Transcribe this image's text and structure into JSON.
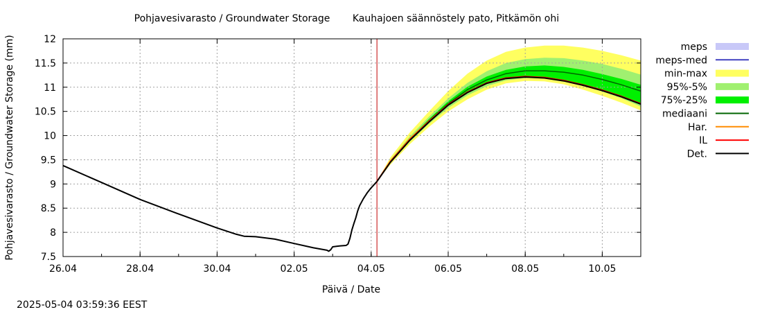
{
  "title_left": "Pohjavesivarasto / Groundwater Storage",
  "title_right": "Kauhajoen säännöstely pato, Pitkämön ohi",
  "timestamp": "2025-05-04 03:59:36 EEST",
  "chart_data": {
    "type": "area",
    "xlabel": "Päivä / Date",
    "ylabel": "Pohjavesivarasto / Groundwater Storage (mm)",
    "xlim": [
      0,
      15
    ],
    "ylim": [
      7.5,
      12
    ],
    "grid": true,
    "legend_position": "right",
    "x_ticks": [
      {
        "x": 0,
        "label": "26.04"
      },
      {
        "x": 2,
        "label": "28.04"
      },
      {
        "x": 4,
        "label": "30.04"
      },
      {
        "x": 6,
        "label": "02.05"
      },
      {
        "x": 8,
        "label": "04.05"
      },
      {
        "x": 10,
        "label": "06.05"
      },
      {
        "x": 12,
        "label": "08.05"
      },
      {
        "x": 14,
        "label": "10.05"
      }
    ],
    "y_ticks": [
      {
        "y": 12,
        "label": "12"
      },
      {
        "y": 11.5,
        "label": "11.5"
      },
      {
        "y": 11,
        "label": "11"
      },
      {
        "y": 10.5,
        "label": "10.5"
      },
      {
        "y": 10,
        "label": "10"
      },
      {
        "y": 9.5,
        "label": "9.5"
      },
      {
        "y": 9,
        "label": "9"
      },
      {
        "y": 8.5,
        "label": "8.5"
      },
      {
        "y": 8,
        "label": "8"
      },
      {
        "y": 7.5,
        "label": "7.5"
      }
    ],
    "forecast_start_x": 8.15,
    "colors": {
      "meps": "#c8c8f8",
      "meps_med": "#4040c0",
      "min_max": "#ffff60",
      "p95_5": "#a0f070",
      "p75_25": "#00f000",
      "mediaani": "#006400",
      "har": "#ff8c00",
      "il": "#ff0000",
      "det": "#000000",
      "vline": "#c00000"
    },
    "legend": [
      {
        "key": "meps",
        "label": "meps",
        "kind": "band"
      },
      {
        "key": "meps_med",
        "label": "meps-med",
        "kind": "line"
      },
      {
        "key": "min_max",
        "label": "min-max",
        "kind": "band"
      },
      {
        "key": "p95_5",
        "label": "95%-5%",
        "kind": "band"
      },
      {
        "key": "p75_25",
        "label": "75%-25%",
        "kind": "band"
      },
      {
        "key": "mediaani",
        "label": "mediaani",
        "kind": "line"
      },
      {
        "key": "har",
        "label": "Har.",
        "kind": "line"
      },
      {
        "key": "il",
        "label": "IL",
        "kind": "line"
      },
      {
        "key": "det",
        "label": "Det.",
        "kind": "line"
      }
    ],
    "observed": {
      "x": [
        0,
        1,
        2,
        3,
        4,
        4.5,
        4.7,
        5,
        5.5,
        6,
        6.5,
        6.85,
        6.9,
        6.95,
        7.0,
        7.1,
        7.2,
        7.35,
        7.4,
        7.45,
        7.5,
        7.55,
        7.6,
        7.65,
        7.7,
        7.8,
        7.9,
        8.0,
        8.15
      ],
      "y": [
        9.38,
        9.03,
        8.68,
        8.38,
        8.09,
        7.96,
        7.92,
        7.91,
        7.86,
        7.77,
        7.68,
        7.63,
        7.61,
        7.64,
        7.7,
        7.71,
        7.72,
        7.73,
        7.76,
        7.88,
        8.05,
        8.18,
        8.3,
        8.44,
        8.55,
        8.7,
        8.82,
        8.92,
        9.05
      ]
    },
    "forecast_x": [
      8.15,
      8.5,
      9.0,
      9.5,
      10.0,
      10.5,
      11.0,
      11.5,
      12.0,
      12.5,
      13.0,
      13.5,
      14.0,
      14.5,
      15.0
    ],
    "bands": {
      "min_max": {
        "low": [
          9.05,
          9.4,
          9.82,
          10.18,
          10.5,
          10.75,
          10.95,
          11.08,
          11.13,
          11.12,
          11.06,
          10.95,
          10.82,
          10.68,
          10.52
        ],
        "high": [
          9.05,
          9.55,
          10.06,
          10.5,
          10.92,
          11.28,
          11.55,
          11.73,
          11.82,
          11.86,
          11.86,
          11.82,
          11.75,
          11.66,
          11.55
        ]
      },
      "p95_5": {
        "low": [
          9.05,
          9.43,
          9.87,
          10.24,
          10.57,
          10.83,
          11.02,
          11.14,
          11.19,
          11.18,
          11.13,
          11.03,
          10.91,
          10.77,
          10.6
        ],
        "high": [
          9.05,
          9.5,
          9.98,
          10.39,
          10.77,
          11.09,
          11.33,
          11.5,
          11.58,
          11.61,
          11.6,
          11.55,
          11.48,
          11.38,
          11.26
        ]
      },
      "p75_25": {
        "low": [
          9.05,
          9.45,
          9.9,
          10.28,
          10.62,
          10.88,
          11.07,
          11.18,
          11.22,
          11.2,
          11.14,
          11.05,
          10.94,
          10.81,
          10.67
        ],
        "high": [
          9.05,
          9.48,
          9.94,
          10.34,
          10.71,
          11.01,
          11.22,
          11.36,
          11.43,
          11.45,
          11.42,
          11.36,
          11.27,
          11.17,
          11.05
        ]
      }
    },
    "lines": {
      "mediaani": [
        9.05,
        9.46,
        9.92,
        10.31,
        10.66,
        10.95,
        11.15,
        11.28,
        11.34,
        11.34,
        11.31,
        11.25,
        11.16,
        11.05,
        10.92
      ],
      "har": [
        9.05,
        9.47,
        9.93,
        10.3,
        10.64,
        10.9,
        11.08,
        11.18,
        11.22,
        11.2,
        11.14,
        11.04,
        10.93,
        10.8,
        10.66
      ],
      "il": [
        9.05,
        9.46,
        9.91,
        10.29,
        10.64,
        10.9,
        11.09,
        11.19,
        11.22,
        11.2,
        11.14,
        11.05,
        10.94,
        10.81,
        10.66
      ],
      "det": [
        9.05,
        9.45,
        9.9,
        10.28,
        10.63,
        10.89,
        11.08,
        11.18,
        11.21,
        11.19,
        11.13,
        11.04,
        10.93,
        10.8,
        10.65
      ]
    }
  }
}
